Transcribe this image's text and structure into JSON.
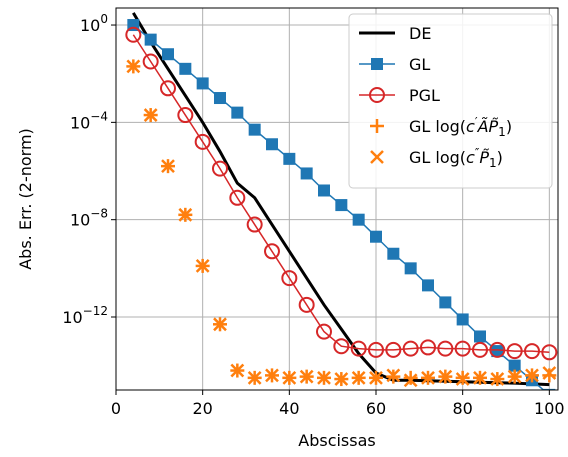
{
  "chart_data": {
    "type": "line",
    "xlabel": "Abscissas",
    "ylabel": "Abs. Err. (2-norm)",
    "xlim": [
      0,
      102
    ],
    "ylim_log10": [
      -15,
      0.7
    ],
    "yscale": "log",
    "grid": true,
    "legend_position": "top-right",
    "x_ticks": [
      0,
      20,
      40,
      60,
      80,
      100
    ],
    "x_tick_labels": [
      "0",
      "20",
      "40",
      "60",
      "80",
      "100"
    ],
    "y_ticks_log10": [
      0,
      -4,
      -8,
      -12
    ],
    "y_tick_labels": [
      {
        "base": "10",
        "exp": "0"
      },
      {
        "base": "10",
        "exp": "−4"
      },
      {
        "base": "10",
        "exp": "−8"
      },
      {
        "base": "10",
        "exp": "−12"
      }
    ],
    "series": [
      {
        "name": "DE",
        "color": "#000000",
        "marker": "none",
        "x": [
          4,
          8,
          12,
          16,
          20,
          24,
          28,
          32,
          36,
          40,
          44,
          48,
          52,
          56,
          60,
          64,
          68,
          72,
          76,
          80,
          84,
          88,
          92,
          96,
          100
        ],
        "log10_y": [
          0.5,
          -0.7,
          -1.8,
          -2.9,
          -4.0,
          -5.2,
          -6.5,
          -7.1,
          -8.2,
          -9.3,
          -10.4,
          -11.5,
          -12.5,
          -13.5,
          -14.3,
          -14.6,
          -14.6,
          -14.62,
          -14.64,
          -14.66,
          -14.68,
          -14.7,
          -14.72,
          -14.75,
          -14.78
        ]
      },
      {
        "name": "GL",
        "color": "#1f77b4",
        "marker": "square",
        "x": [
          4,
          8,
          12,
          16,
          20,
          24,
          28,
          32,
          36,
          40,
          44,
          48,
          52,
          56,
          60,
          64,
          68,
          72,
          76,
          80,
          84,
          88,
          92,
          96,
          100
        ],
        "log10_y": [
          0.0,
          -0.6,
          -1.2,
          -1.8,
          -2.4,
          -3.0,
          -3.6,
          -4.3,
          -4.9,
          -5.5,
          -6.1,
          -6.8,
          -7.4,
          -8.0,
          -8.7,
          -9.4,
          -10.0,
          -10.7,
          -11.4,
          -12.1,
          -12.8,
          -13.4,
          -14.0,
          -14.6,
          -15.2
        ]
      },
      {
        "name": "PGL",
        "color": "#d62728",
        "marker": "circle",
        "x": [
          4,
          8,
          12,
          16,
          20,
          24,
          28,
          32,
          36,
          40,
          44,
          48,
          52,
          56,
          60,
          64,
          68,
          72,
          76,
          80,
          84,
          88,
          92,
          96,
          100
        ],
        "log10_y": [
          -0.4,
          -1.5,
          -2.6,
          -3.7,
          -4.8,
          -5.9,
          -7.1,
          -8.2,
          -9.3,
          -10.4,
          -11.5,
          -12.6,
          -13.2,
          -13.3,
          -13.35,
          -13.35,
          -13.3,
          -13.25,
          -13.3,
          -13.3,
          -13.35,
          -13.35,
          -13.4,
          -13.4,
          -13.45
        ]
      },
      {
        "name": "GL log(c′ÃP̃₁)",
        "legend": {
          "pre": "GL log(",
          "c": "c",
          "prime": "′",
          "A": "Ã",
          "P": "P̃",
          "sub": "1",
          "post": ")"
        },
        "color": "#ff7f0e",
        "marker": "plus",
        "x": [
          4,
          8,
          12,
          16,
          20,
          24,
          28,
          32,
          36,
          40,
          44,
          48,
          52,
          56,
          60,
          64,
          68,
          72,
          76,
          80,
          84,
          88,
          92,
          96,
          100
        ],
        "log10_y": [
          -1.7,
          -3.7,
          -5.8,
          -7.8,
          -9.9,
          -12.3,
          -14.2,
          -14.5,
          -14.4,
          -14.5,
          -14.45,
          -14.5,
          -14.55,
          -14.5,
          -14.5,
          -14.45,
          -14.5,
          -14.5,
          -14.45,
          -14.5,
          -14.5,
          -14.55,
          -14.45,
          -14.4,
          -14.4
        ]
      },
      {
        "name": "GL log(c″P̃₁)",
        "legend": {
          "pre": "GL log(",
          "c": "c",
          "prime": "″",
          "P": "P̃",
          "sub": "1",
          "post": ")"
        },
        "color": "#ff7f0e",
        "marker": "x",
        "x": [
          4,
          8,
          12,
          16,
          20,
          24,
          28,
          32,
          36,
          40,
          44,
          48,
          52,
          56,
          60,
          64,
          68,
          72,
          76,
          80,
          84,
          88,
          92,
          96,
          100
        ],
        "log10_y": [
          -1.7,
          -3.7,
          -5.8,
          -7.8,
          -9.9,
          -12.3,
          -14.2,
          -14.5,
          -14.4,
          -14.5,
          -14.45,
          -14.5,
          -14.55,
          -14.5,
          -14.5,
          -14.4,
          -14.6,
          -14.5,
          -14.45,
          -14.55,
          -14.5,
          -14.55,
          -14.45,
          -14.4,
          -14.3
        ]
      }
    ]
  }
}
